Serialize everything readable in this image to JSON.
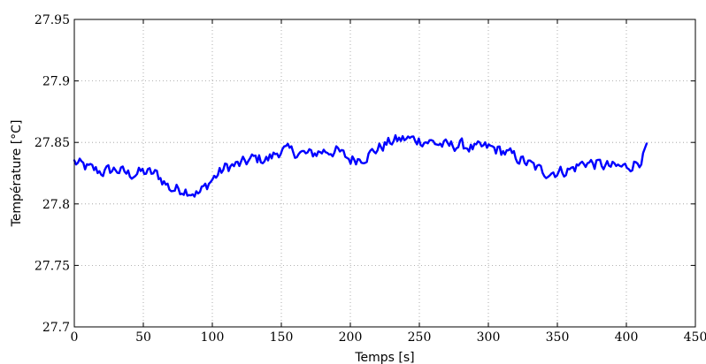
{
  "chart_data": {
    "type": "line",
    "title": "",
    "xlabel": "Temps [s]",
    "ylabel": "Température [°C]",
    "xlim": [
      0,
      450
    ],
    "ylim": [
      27.7,
      27.95
    ],
    "grid": true,
    "x_ticks": [
      "0",
      "50",
      "100",
      "150",
      "200",
      "250",
      "300",
      "350",
      "400",
      "450"
    ],
    "y_ticks": [
      "27.7",
      "27.75",
      "27.8",
      "27.85",
      "27.9",
      "27.95"
    ],
    "series": [
      {
        "color": "#0000ff",
        "x": [
          0,
          10,
          20,
          30,
          40,
          50,
          60,
          70,
          80,
          90,
          100,
          110,
          120,
          130,
          140,
          150,
          160,
          170,
          180,
          190,
          200,
          210,
          220,
          230,
          240,
          250,
          260,
          270,
          280,
          290,
          300,
          310,
          320,
          330,
          340,
          350,
          360,
          370,
          380,
          390,
          400,
          410,
          415
        ],
        "y": [
          27.834,
          27.829,
          27.826,
          27.828,
          27.824,
          27.826,
          27.824,
          27.812,
          27.812,
          27.808,
          27.82,
          27.83,
          27.832,
          27.837,
          27.836,
          27.844,
          27.842,
          27.84,
          27.843,
          27.843,
          27.836,
          27.838,
          27.845,
          27.851,
          27.853,
          27.852,
          27.85,
          27.847,
          27.848,
          27.845,
          27.846,
          27.843,
          27.838,
          27.832,
          27.826,
          27.826,
          27.828,
          27.834,
          27.832,
          27.83,
          27.83,
          27.835,
          27.85
        ]
      }
    ]
  }
}
